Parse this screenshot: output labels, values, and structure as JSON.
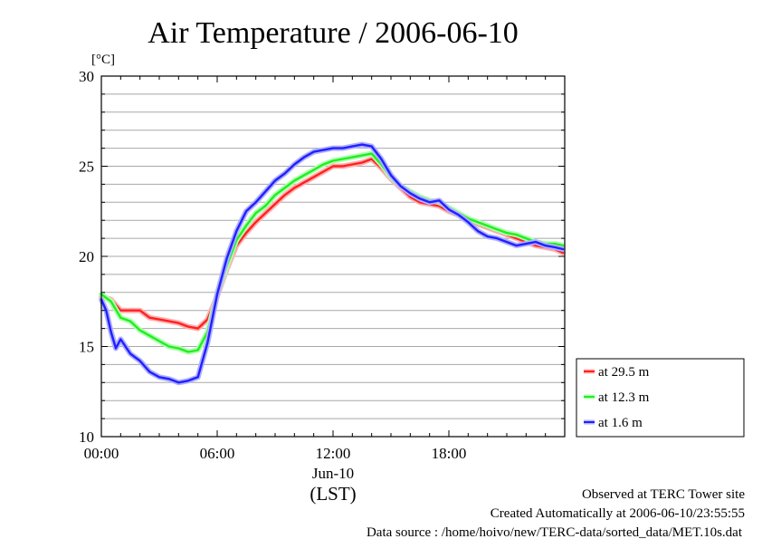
{
  "chart_data": {
    "type": "line",
    "title": "Air Temperature / 2006-06-10",
    "ylabel": "[°C]",
    "xlabel": "(LST)",
    "date_label": "Jun-10",
    "ylim": [
      10,
      30
    ],
    "y_ticks": [
      "10",
      "15",
      "20",
      "25",
      "30"
    ],
    "x_ticks": [
      "00:00",
      "06:00",
      "12:00",
      "18:00"
    ],
    "xlim_hours": [
      0,
      24
    ],
    "minor_grid_step": 1,
    "grid": true,
    "legend_position": "bottom-right, outside plot",
    "series": [
      {
        "name": "at 29.5 m",
        "color": "#ff2020",
        "glow": "#ffb0b0",
        "x": [
          0,
          0.5,
          1,
          1.5,
          2,
          2.5,
          3,
          3.5,
          4,
          4.5,
          5,
          5.5,
          6,
          6.5,
          7,
          7.5,
          8,
          8.5,
          9,
          9.5,
          10,
          10.5,
          11,
          11.5,
          12,
          12.5,
          13,
          13.5,
          14,
          14.5,
          15,
          15.5,
          16,
          16.5,
          17,
          17.5,
          18,
          18.5,
          19,
          19.5,
          20,
          20.5,
          21,
          21.5,
          22,
          22.5,
          23,
          23.5,
          23.9
        ],
        "values": [
          17.8,
          17.6,
          17.0,
          17.0,
          17.0,
          16.6,
          16.5,
          16.4,
          16.3,
          16.1,
          16.0,
          16.5,
          17.8,
          19.3,
          20.6,
          21.3,
          21.9,
          22.4,
          22.9,
          23.4,
          23.8,
          24.1,
          24.4,
          24.7,
          25.0,
          25.0,
          25.1,
          25.2,
          25.4,
          24.9,
          24.3,
          23.8,
          23.3,
          23.0,
          22.9,
          22.8,
          22.5,
          22.3,
          22.0,
          21.8,
          21.6,
          21.4,
          21.2,
          21.0,
          20.8,
          20.6,
          20.5,
          20.4,
          20.2
        ]
      },
      {
        "name": "at 12.3 m",
        "color": "#20ee20",
        "glow": "#b0ffb0",
        "x": [
          0,
          0.5,
          1,
          1.5,
          2,
          2.5,
          3,
          3.5,
          4,
          4.5,
          5,
          5.5,
          6,
          6.5,
          7,
          7.5,
          8,
          8.5,
          9,
          9.5,
          10,
          10.5,
          11,
          11.5,
          12,
          12.5,
          13,
          13.5,
          14,
          14.5,
          15,
          15.5,
          16,
          16.5,
          17,
          17.5,
          18,
          18.5,
          19,
          19.5,
          20,
          20.5,
          21,
          21.5,
          22,
          22.5,
          23,
          23.5,
          23.9
        ],
        "values": [
          17.9,
          17.5,
          16.6,
          16.4,
          15.9,
          15.6,
          15.3,
          15.0,
          14.9,
          14.7,
          14.8,
          15.8,
          17.9,
          19.5,
          20.9,
          21.7,
          22.4,
          22.8,
          23.4,
          23.8,
          24.2,
          24.5,
          24.8,
          25.1,
          25.3,
          25.4,
          25.5,
          25.6,
          25.7,
          25.1,
          24.4,
          23.9,
          23.6,
          23.3,
          23.1,
          23.0,
          22.7,
          22.4,
          22.1,
          21.9,
          21.7,
          21.5,
          21.3,
          21.2,
          21.0,
          20.8,
          20.7,
          20.7,
          20.6
        ]
      },
      {
        "name": "at 1.6 m",
        "color": "#2020ff",
        "glow": "#b0b0ff",
        "x": [
          0,
          0.25,
          0.5,
          0.75,
          1,
          1.5,
          2,
          2.5,
          3,
          3.5,
          4,
          4.5,
          5,
          5.5,
          6,
          6.5,
          7,
          7.5,
          8,
          8.5,
          9,
          9.5,
          10,
          10.5,
          11,
          11.5,
          12,
          12.5,
          13,
          13.5,
          14,
          14.5,
          15,
          15.5,
          16,
          16.5,
          17,
          17.5,
          18,
          18.5,
          19,
          19.5,
          20,
          20.5,
          21,
          21.5,
          22,
          22.5,
          23,
          23.5,
          23.9
        ],
        "values": [
          17.6,
          17.0,
          15.8,
          14.9,
          15.4,
          14.6,
          14.2,
          13.6,
          13.3,
          13.2,
          13.0,
          13.1,
          13.3,
          15.2,
          17.9,
          19.9,
          21.4,
          22.5,
          23.0,
          23.6,
          24.2,
          24.6,
          25.1,
          25.5,
          25.8,
          25.9,
          26.0,
          26.0,
          26.1,
          26.2,
          26.1,
          25.4,
          24.5,
          23.9,
          23.5,
          23.2,
          23.0,
          23.1,
          22.6,
          22.3,
          21.9,
          21.4,
          21.1,
          21.0,
          20.8,
          20.6,
          20.7,
          20.8,
          20.6,
          20.5,
          20.4
        ]
      }
    ]
  },
  "footer": {
    "site": "Observed at TERC Tower site",
    "created": "Created Automatically at 2006-06-10/23:55:55",
    "source": "Data source : /home/hoivo/new/TERC-data/sorted_data/MET.10s.dat"
  }
}
